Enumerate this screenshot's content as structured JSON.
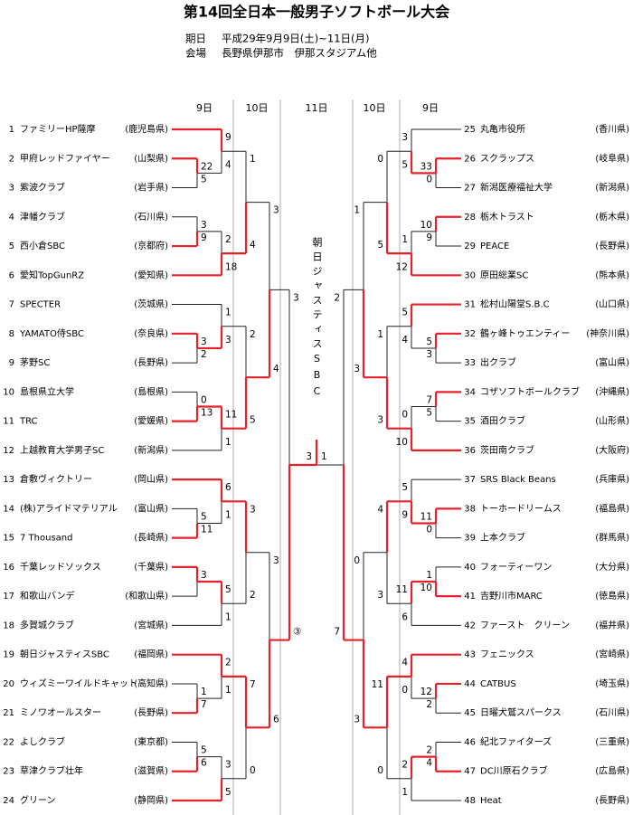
{
  "header": {
    "title": "第14回全日本一般男子ソフトボール大会",
    "date_label": "期日",
    "date": "平成29年9月9日(土)~11日(月)",
    "venue_label": "会場",
    "venue": "長野県伊那市　伊那スタジアム他"
  },
  "round_headers": {
    "left": [
      "9日",
      "10日"
    ],
    "center": "11日",
    "right": [
      "10日",
      "9日"
    ]
  },
  "champion": "朝日ジャスティスSBC",
  "teams": [
    {
      "no": 1,
      "name": "ファミリーHP薩摩",
      "pref": "(鹿児島県)"
    },
    {
      "no": 2,
      "name": "甲府レッドファイヤー",
      "pref": "(山梨県)"
    },
    {
      "no": 3,
      "name": "紫波クラブ",
      "pref": "(岩手県)"
    },
    {
      "no": 4,
      "name": "津幡クラブ",
      "pref": "(石川県)"
    },
    {
      "no": 5,
      "name": "西小倉SBC",
      "pref": "(京都府)"
    },
    {
      "no": 6,
      "name": "愛知TopGunRZ",
      "pref": "(愛知県)"
    },
    {
      "no": 7,
      "name": "SPECTER",
      "pref": "(茨城県)"
    },
    {
      "no": 8,
      "name": "YAMATO侍SBC",
      "pref": "(奈良県)"
    },
    {
      "no": 9,
      "name": "茅野SC",
      "pref": "(長野県)"
    },
    {
      "no": 10,
      "name": "島根県立大学",
      "pref": "(島根県)"
    },
    {
      "no": 11,
      "name": "TRC",
      "pref": "(愛媛県)"
    },
    {
      "no": 12,
      "name": "上越教育大学男子SC",
      "pref": "(新潟県)"
    },
    {
      "no": 13,
      "name": "倉敷ヴィクトリー",
      "pref": "(岡山県)"
    },
    {
      "no": 14,
      "name": "(株)アライドマテリアル",
      "pref": "(富山県)"
    },
    {
      "no": 15,
      "name": "7 Thousand",
      "pref": "(長崎県)"
    },
    {
      "no": 16,
      "name": "千葉レッドソックス",
      "pref": "(千葉県)"
    },
    {
      "no": 17,
      "name": "和歌山バンデ",
      "pref": "(和歌山県)"
    },
    {
      "no": 18,
      "name": "多賀城クラブ",
      "pref": "(宮城県)"
    },
    {
      "no": 19,
      "name": "朝日ジャスティスSBC",
      "pref": "(福岡県)"
    },
    {
      "no": 20,
      "name": "ウィズミーワイルドキャット",
      "pref": "(高知県)"
    },
    {
      "no": 21,
      "name": "ミノワオールスター",
      "pref": "(長野県)"
    },
    {
      "no": 22,
      "name": "よしクラブ",
      "pref": "(東京都)"
    },
    {
      "no": 23,
      "name": "草津クラブ壮年",
      "pref": "(滋賀県)"
    },
    {
      "no": 24,
      "name": "グリーン",
      "pref": "(静岡県)"
    },
    {
      "no": 25,
      "name": "丸亀市役所",
      "pref": "(香川県)"
    },
    {
      "no": 26,
      "name": "スクラップス",
      "pref": "(岐阜県)"
    },
    {
      "no": 27,
      "name": "新潟医療福祉大学",
      "pref": "(新潟県)"
    },
    {
      "no": 28,
      "name": "栃木トラスト",
      "pref": "(栃木県)"
    },
    {
      "no": 29,
      "name": "PEACE",
      "pref": "(長野県)"
    },
    {
      "no": 30,
      "name": "原田総業SC",
      "pref": "(熊本県)"
    },
    {
      "no": 31,
      "name": "松村山陽堂S.B.C",
      "pref": "(山口県)"
    },
    {
      "no": 32,
      "name": "鶴ヶ峰トゥエンティー",
      "pref": "(神奈川県)"
    },
    {
      "no": 33,
      "name": "出クラブ",
      "pref": "(富山県)"
    },
    {
      "no": 34,
      "name": "コザソフトボールクラブ",
      "pref": "(沖縄県)"
    },
    {
      "no": 35,
      "name": "酒田クラブ",
      "pref": "(山形県)"
    },
    {
      "no": 36,
      "name": "茨田南クラブ",
      "pref": "(大阪府)"
    },
    {
      "no": 37,
      "name": "SRS Black Beans",
      "pref": "(兵庫県)"
    },
    {
      "no": 38,
      "name": "トーホードリームス",
      "pref": "(福島県)"
    },
    {
      "no": 39,
      "name": "上本クラブ",
      "pref": "(群馬県)"
    },
    {
      "no": 40,
      "name": "フォーティーワン",
      "pref": "(大分県)"
    },
    {
      "no": 41,
      "name": "吉野川市MARC",
      "pref": "(徳島県)"
    },
    {
      "no": 42,
      "name": "ファースト　クリーン",
      "pref": "(福井県)"
    },
    {
      "no": 43,
      "name": "フェニックス",
      "pref": "(宮崎県)"
    },
    {
      "no": 44,
      "name": "CATBUS",
      "pref": "(埼玉県)"
    },
    {
      "no": 45,
      "name": "日曜犬鷲スパークス",
      "pref": "(石川県)"
    },
    {
      "no": 46,
      "name": "紀北ファイターズ",
      "pref": "(三重県)"
    },
    {
      "no": 47,
      "name": "DC川原石クラブ",
      "pref": "(広島県)"
    },
    {
      "no": 48,
      "name": "Heat",
      "pref": "(長野県)"
    }
  ],
  "matches": [
    [
      22,
      5
    ],
    [
      9,
      4
    ],
    [
      3,
      9
    ],
    [
      2,
      18
    ],
    [
      1,
      4
    ],
    [
      3,
      2
    ],
    [
      1,
      3
    ],
    [
      0,
      13
    ],
    [
      11,
      1
    ],
    [
      2,
      5
    ],
    [
      3,
      4
    ],
    [
      5,
      11
    ],
    [
      6,
      1
    ],
    [
      3,
      null
    ],
    [
      5,
      1
    ],
    [
      3,
      2
    ],
    [
      1,
      7
    ],
    [
      2,
      1
    ],
    [
      5,
      6
    ],
    [
      3,
      5
    ],
    [
      7,
      0
    ],
    [
      3,
      6
    ],
    [
      3,
      "③"
    ],
    [
      33,
      0
    ],
    [
      3,
      5
    ],
    [
      10,
      9
    ],
    [
      1,
      12
    ],
    [
      0,
      5
    ],
    [
      5,
      3
    ],
    [
      5,
      4
    ],
    [
      7,
      5
    ],
    [
      0,
      10
    ],
    [
      1,
      3
    ],
    [
      1,
      3
    ],
    [
      11,
      0
    ],
    [
      5,
      9
    ],
    [
      1,
      10
    ],
    [
      11,
      6
    ],
    [
      4,
      3
    ],
    [
      12,
      2
    ],
    [
      4,
      0
    ],
    [
      2,
      4
    ],
    [
      2,
      1
    ],
    [
      11,
      0
    ],
    [
      0,
      3
    ],
    [
      2,
      7
    ],
    [
      3,
      1
    ]
  ]
}
